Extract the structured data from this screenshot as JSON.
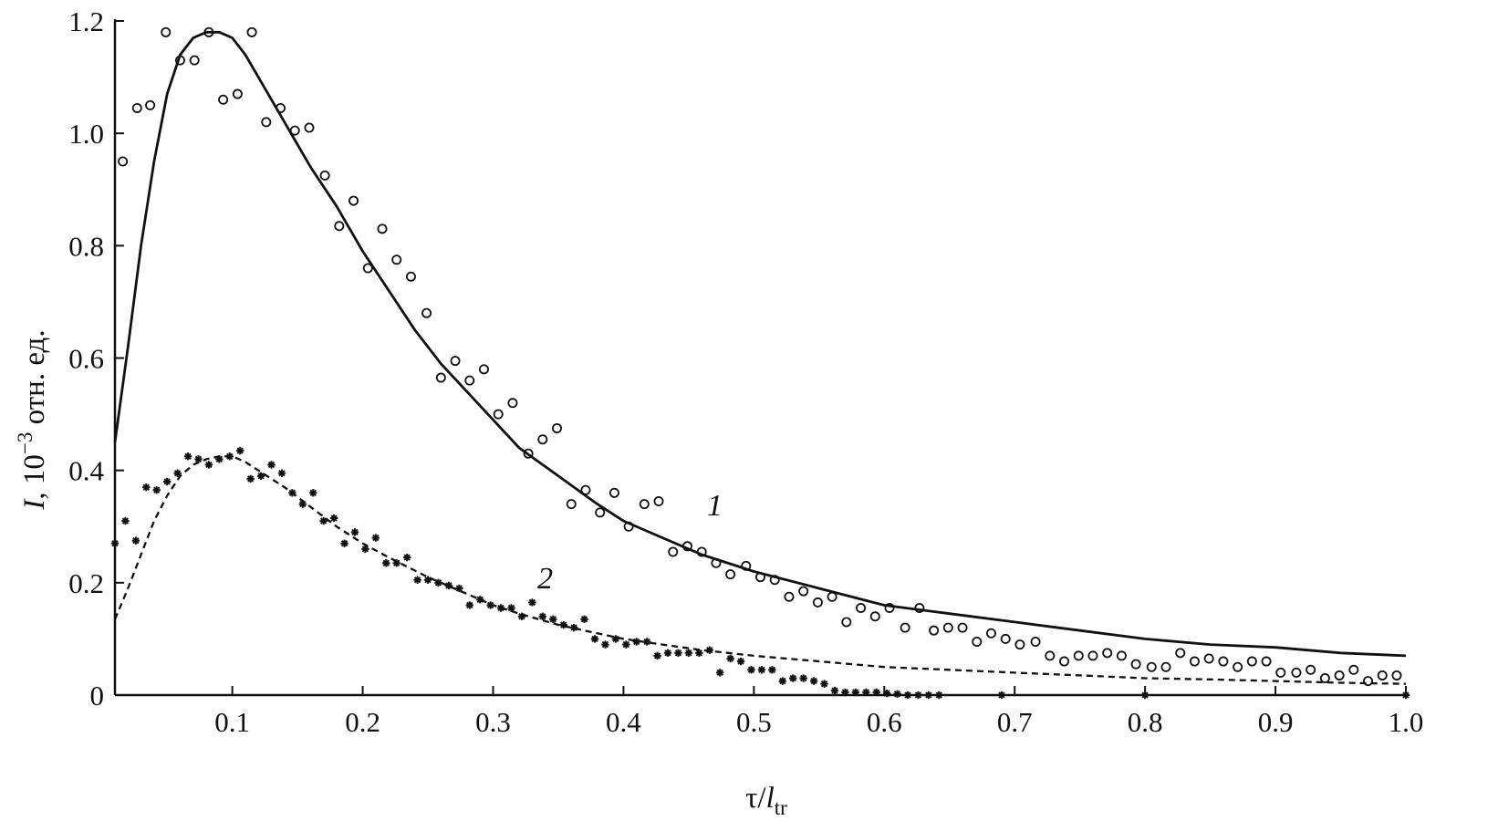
{
  "chart_data": {
    "type": "scatter",
    "title": "",
    "xlabel": {
      "main": "τ/",
      "italic": "l",
      "sub": "tr"
    },
    "ylabel": {
      "italic": "I",
      "main": ", 10",
      "sup": "−3",
      "tail": " отн. ед."
    },
    "xlim": [
      0.01,
      1.0
    ],
    "ylim": [
      0,
      1.2
    ],
    "x_ticks": [
      0.1,
      0.2,
      0.3,
      0.4,
      0.5,
      0.6,
      0.7,
      0.8,
      0.9,
      1.0
    ],
    "x_tick_labels": [
      "0.1",
      "0.2",
      "0.3",
      "0.4",
      "0.5",
      "0.6",
      "0.7",
      "0.8",
      "0.9",
      "1.0"
    ],
    "y_ticks": [
      0,
      0.2,
      0.4,
      0.6,
      0.8,
      1.0,
      1.2
    ],
    "y_tick_labels": [
      "0",
      "0.2",
      "0.4",
      "0.6",
      "0.8",
      "1.0",
      "1.2"
    ],
    "grid": false,
    "legend": "none",
    "curve_labels": [
      {
        "text": "1",
        "x": 0.47,
        "y": 0.32
      },
      {
        "text": "2",
        "x": 0.34,
        "y": 0.19
      }
    ],
    "series": [
      {
        "label": "1",
        "style": "solid-line",
        "color": "#111111",
        "x": [
          0.01,
          0.02,
          0.03,
          0.04,
          0.05,
          0.06,
          0.07,
          0.08,
          0.09,
          0.1,
          0.11,
          0.12,
          0.13,
          0.14,
          0.15,
          0.16,
          0.18,
          0.2,
          0.22,
          0.24,
          0.26,
          0.28,
          0.3,
          0.32,
          0.35,
          0.38,
          0.4,
          0.43,
          0.46,
          0.5,
          0.55,
          0.6,
          0.65,
          0.7,
          0.75,
          0.8,
          0.85,
          0.9,
          0.95,
          1.0
        ],
        "y": [
          0.45,
          0.62,
          0.8,
          0.95,
          1.07,
          1.14,
          1.17,
          1.18,
          1.18,
          1.17,
          1.14,
          1.1,
          1.06,
          1.02,
          0.98,
          0.94,
          0.87,
          0.79,
          0.72,
          0.65,
          0.59,
          0.54,
          0.49,
          0.44,
          0.39,
          0.34,
          0.31,
          0.28,
          0.25,
          0.22,
          0.19,
          0.16,
          0.145,
          0.13,
          0.115,
          0.1,
          0.09,
          0.085,
          0.075,
          0.07
        ]
      },
      {
        "label": "1",
        "style": "open-circle",
        "color": "#111111",
        "x": [
          0.016,
          0.027,
          0.037,
          0.049,
          0.06,
          0.071,
          0.082,
          0.093,
          0.104,
          0.115,
          0.126,
          0.137,
          0.148,
          0.159,
          0.171,
          0.182,
          0.193,
          0.204,
          0.215,
          0.226,
          0.237,
          0.249,
          0.26,
          0.271,
          0.282,
          0.293,
          0.304,
          0.315,
          0.327,
          0.338,
          0.349,
          0.36,
          0.371,
          0.382,
          0.393,
          0.404,
          0.416,
          0.427,
          0.438,
          0.449,
          0.46,
          0.471,
          0.482,
          0.494,
          0.505,
          0.516,
          0.527,
          0.538,
          0.549,
          0.56,
          0.571,
          0.582,
          0.593,
          0.604,
          0.616,
          0.627,
          0.638,
          0.649,
          0.66,
          0.671,
          0.682,
          0.693,
          0.704,
          0.716,
          0.727,
          0.738,
          0.749,
          0.76,
          0.771,
          0.782,
          0.793,
          0.805,
          0.816,
          0.827,
          0.838,
          0.849,
          0.86,
          0.871,
          0.882,
          0.893,
          0.904,
          0.916,
          0.927,
          0.938,
          0.949,
          0.96,
          0.971,
          0.982,
          0.993
        ],
        "y": [
          0.95,
          1.045,
          1.05,
          1.18,
          1.13,
          1.13,
          1.18,
          1.06,
          1.07,
          1.18,
          1.02,
          1.045,
          1.005,
          1.01,
          0.925,
          0.835,
          0.88,
          0.76,
          0.83,
          0.775,
          0.745,
          0.68,
          0.565,
          0.595,
          0.56,
          0.58,
          0.5,
          0.52,
          0.43,
          0.455,
          0.475,
          0.34,
          0.365,
          0.325,
          0.36,
          0.3,
          0.34,
          0.345,
          0.255,
          0.265,
          0.255,
          0.235,
          0.215,
          0.23,
          0.21,
          0.205,
          0.175,
          0.185,
          0.165,
          0.175,
          0.13,
          0.155,
          0.14,
          0.155,
          0.12,
          0.155,
          0.115,
          0.12,
          0.12,
          0.095,
          0.11,
          0.1,
          0.09,
          0.095,
          0.07,
          0.06,
          0.07,
          0.07,
          0.075,
          0.07,
          0.055,
          0.05,
          0.05,
          0.075,
          0.06,
          0.065,
          0.06,
          0.05,
          0.06,
          0.06,
          0.04,
          0.04,
          0.045,
          0.03,
          0.035,
          0.045,
          0.025,
          0.035,
          0.035
        ]
      },
      {
        "label": "2",
        "style": "dashed-line",
        "color": "#111111",
        "x": [
          0.01,
          0.02,
          0.03,
          0.04,
          0.05,
          0.06,
          0.07,
          0.08,
          0.09,
          0.1,
          0.11,
          0.12,
          0.14,
          0.16,
          0.18,
          0.2,
          0.22,
          0.25,
          0.28,
          0.3,
          0.32,
          0.35,
          0.38,
          0.4,
          0.43,
          0.46,
          0.5,
          0.55,
          0.6,
          0.65,
          0.7,
          0.75,
          0.8,
          0.85,
          0.9,
          0.95,
          1.0
        ],
        "y": [
          0.135,
          0.19,
          0.25,
          0.31,
          0.355,
          0.39,
          0.41,
          0.42,
          0.425,
          0.425,
          0.415,
          0.4,
          0.37,
          0.335,
          0.3,
          0.27,
          0.245,
          0.21,
          0.18,
          0.16,
          0.145,
          0.125,
          0.11,
          0.1,
          0.09,
          0.08,
          0.07,
          0.06,
          0.05,
          0.045,
          0.04,
          0.035,
          0.03,
          0.028,
          0.025,
          0.022,
          0.02
        ]
      },
      {
        "label": "2",
        "style": "asterisk",
        "color": "#111111",
        "x": [
          0.01,
          0.018,
          0.026,
          0.034,
          0.042,
          0.05,
          0.058,
          0.066,
          0.074,
          0.082,
          0.09,
          0.098,
          0.106,
          0.114,
          0.122,
          0.13,
          0.138,
          0.146,
          0.154,
          0.162,
          0.17,
          0.178,
          0.186,
          0.194,
          0.202,
          0.21,
          0.218,
          0.226,
          0.234,
          0.242,
          0.25,
          0.258,
          0.266,
          0.274,
          0.282,
          0.29,
          0.298,
          0.306,
          0.314,
          0.322,
          0.33,
          0.338,
          0.346,
          0.354,
          0.362,
          0.37,
          0.378,
          0.386,
          0.394,
          0.402,
          0.41,
          0.418,
          0.426,
          0.434,
          0.442,
          0.45,
          0.458,
          0.466,
          0.474,
          0.482,
          0.49,
          0.498,
          0.506,
          0.514,
          0.522,
          0.53,
          0.538,
          0.546,
          0.554,
          0.562,
          0.57,
          0.578,
          0.586,
          0.594,
          0.602,
          0.61,
          0.618,
          0.626,
          0.634,
          0.642,
          0.69,
          0.8,
          1.0
        ],
        "y": [
          0.27,
          0.31,
          0.275,
          0.37,
          0.365,
          0.38,
          0.395,
          0.425,
          0.42,
          0.41,
          0.42,
          0.425,
          0.435,
          0.385,
          0.39,
          0.41,
          0.395,
          0.36,
          0.34,
          0.36,
          0.31,
          0.315,
          0.27,
          0.29,
          0.26,
          0.28,
          0.235,
          0.235,
          0.245,
          0.205,
          0.205,
          0.2,
          0.195,
          0.19,
          0.16,
          0.17,
          0.16,
          0.155,
          0.155,
          0.14,
          0.165,
          0.14,
          0.135,
          0.125,
          0.12,
          0.135,
          0.1,
          0.09,
          0.1,
          0.09,
          0.095,
          0.095,
          0.07,
          0.075,
          0.075,
          0.075,
          0.075,
          0.08,
          0.04,
          0.065,
          0.06,
          0.045,
          0.045,
          0.045,
          0.025,
          0.03,
          0.03,
          0.025,
          0.02,
          0.008,
          0.005,
          0.005,
          0.005,
          0.005,
          0.003,
          0.002,
          0.0,
          0.0,
          0.0,
          0.0,
          0.0,
          0.0,
          0.0
        ]
      }
    ]
  }
}
